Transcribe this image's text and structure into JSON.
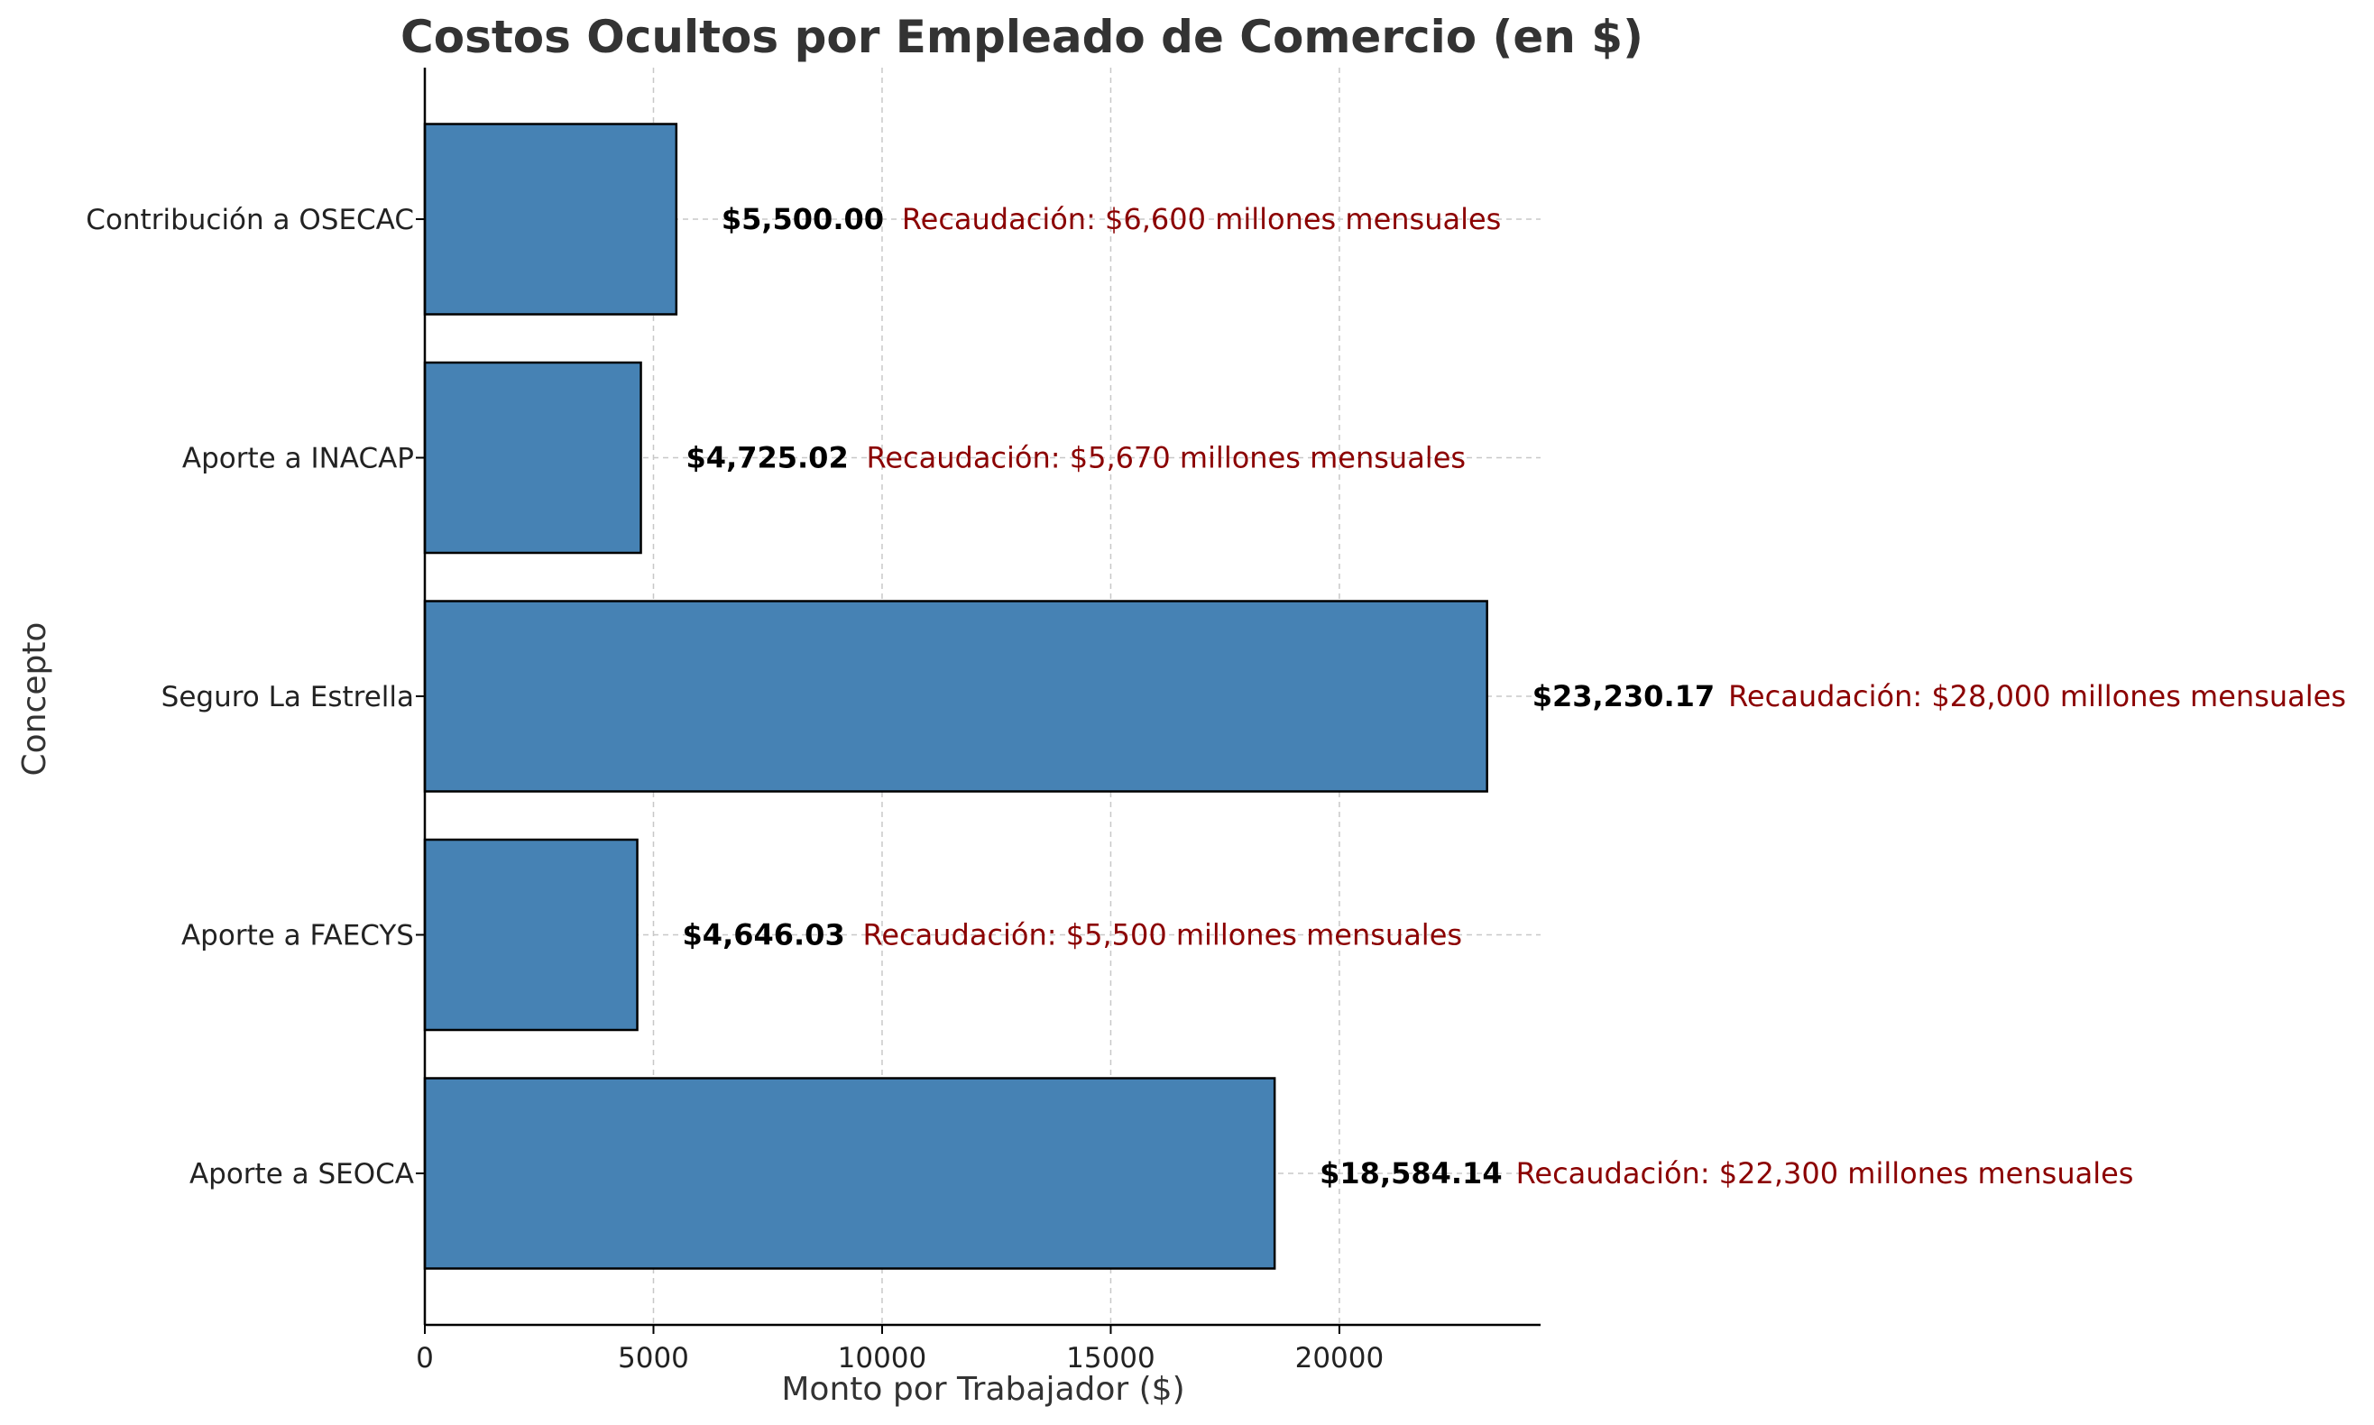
{
  "colors": {
    "bar_fill": "#4682b4",
    "bar_edge": "#000000",
    "note_text": "#8b0000",
    "grid": "#c8c8c8"
  },
  "chart_data": {
    "type": "bar",
    "orientation": "horizontal",
    "title": "Costos Ocultos por Empleado de Comercio (en $)",
    "xlabel": "Monto por Trabajador ($)",
    "ylabel": "Concepto",
    "xlim": [
      0,
      24400
    ],
    "xticks": [
      0,
      5000,
      10000,
      15000,
      20000
    ],
    "xtick_labels": [
      "0",
      "5000",
      "10000",
      "15000",
      "20000"
    ],
    "grid": true,
    "categories": [
      "Contribución a OSECAC",
      "Aporte a INACAP",
      "Seguro La Estrella",
      "Aporte a FAECYS",
      "Aporte a SEOCA"
    ],
    "values": [
      5500.0,
      4725.02,
      23230.17,
      4646.03,
      18584.14
    ],
    "value_labels": [
      "$5,500.00",
      "$4,725.02",
      "$23,230.17",
      "$4,646.03",
      "$18,584.14"
    ],
    "annotations": [
      "Recaudación: $6,600 millones mensuales",
      "Recaudación: $5,670 millones mensuales",
      "Recaudación: $28,000 millones mensuales",
      "Recaudación: $5,500 millones mensuales",
      "Recaudación: $22,300 millones mensuales"
    ]
  }
}
